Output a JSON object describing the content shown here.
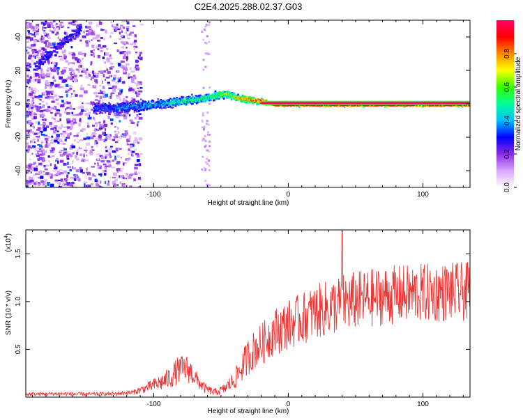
{
  "title": "C2E4.2025.288.02.37.G03",
  "chart_data": [
    {
      "type": "heatmap",
      "xlabel": "Height of straight line (km)",
      "ylabel": "Frequency (Hz)",
      "xlim": [
        -195,
        135
      ],
      "ylim": [
        -50,
        50
      ],
      "x_ticks": [
        -100,
        0,
        100
      ],
      "y_ticks": [
        -40,
        -20,
        0,
        20,
        40
      ],
      "colorbar": {
        "label": "Normalized spectral amplitude",
        "range": [
          0,
          1
        ],
        "ticks": [
          "0.0",
          "0.2",
          "0.4",
          "0.6",
          "0.8"
        ],
        "colors": [
          "#ffffff",
          "#d9a6ff",
          "#8a2be2",
          "#0000ff",
          "#00bfff",
          "#00ff99",
          "#33ff00",
          "#ffff00",
          "#ff8800",
          "#ff0000",
          "#ff0066"
        ]
      },
      "ridge": {
        "x": [
          -145,
          -130,
          -115,
          -100,
          -90,
          -80,
          -70,
          -60,
          -52,
          -45,
          -38,
          -30,
          -22,
          -15,
          -10,
          0,
          50,
          100,
          135
        ],
        "freq": [
          -2,
          -2,
          -1,
          0,
          1,
          2,
          3,
          4,
          6,
          6,
          4,
          3,
          2,
          1,
          0,
          0,
          0,
          0,
          0
        ],
        "amp": [
          0.3,
          0.32,
          0.35,
          0.38,
          0.42,
          0.45,
          0.47,
          0.5,
          0.55,
          0.6,
          0.68,
          0.78,
          0.86,
          0.92,
          0.96,
          0.98,
          0.98,
          0.98,
          0.98
        ]
      }
    },
    {
      "type": "line",
      "xlabel": "Height of straight line (km)",
      "ylabel": "SNR (10 * v/v)",
      "y_multiplier": "(x10",
      "y_multiplier_exp": "4",
      "y_multiplier_close": ")",
      "xlim": [
        -195,
        135
      ],
      "ylim": [
        0,
        17500
      ],
      "x_ticks": [
        -100,
        0,
        100
      ],
      "y_ticks": [
        5000,
        10000,
        15000
      ],
      "y_tick_labels": [
        "0.5",
        "1.0",
        "1.5"
      ],
      "line_color": "#ee3333",
      "series": [
        {
          "name": "SNR",
          "x": [
            -195,
            -170,
            -150,
            -130,
            -115,
            -105,
            -95,
            -88,
            -82,
            -76,
            -72,
            -68,
            -62,
            -55,
            -48,
            -40,
            -35,
            -30,
            -25,
            -20,
            -15,
            -10,
            -5,
            0,
            10,
            20,
            30,
            40,
            50,
            60,
            70,
            80,
            90,
            100,
            110,
            120,
            130,
            135
          ],
          "mean": [
            300,
            350,
            300,
            350,
            500,
            1000,
            1500,
            2000,
            2800,
            3000,
            2600,
            1800,
            900,
            500,
            800,
            1800,
            3000,
            4200,
            5000,
            5500,
            6200,
            6900,
            7200,
            7600,
            8200,
            8900,
            9300,
            9800,
            10100,
            10300,
            10600,
            10700,
            10800,
            10900,
            10900,
            11000,
            11000,
            11000
          ],
          "noise": [
            150,
            150,
            150,
            150,
            200,
            400,
            700,
            900,
            1100,
            1200,
            1000,
            700,
            400,
            300,
            400,
            800,
            1200,
            1500,
            1600,
            1700,
            1800,
            1900,
            2000,
            2000,
            2100,
            2200,
            2300,
            2400,
            2400,
            2400,
            2400,
            2400,
            2400,
            2400,
            2400,
            2400,
            2400,
            2400
          ],
          "peak": {
            "x": 40,
            "y": 17300
          }
        }
      ]
    }
  ]
}
